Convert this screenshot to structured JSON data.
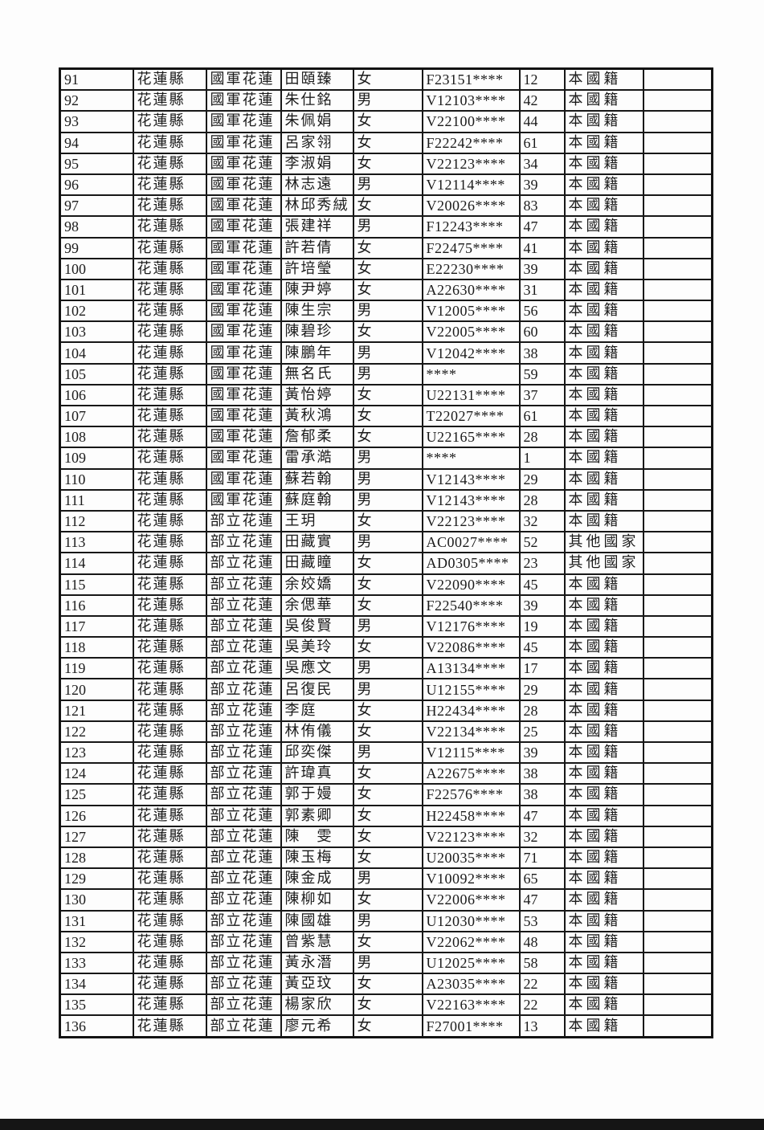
{
  "page": {
    "background": "#fdfdfd",
    "ink_color": "#1b1b1b",
    "grid_line_color": "#171717",
    "bottom_bar_color": "#151515"
  },
  "table": {
    "column_keys": [
      "row_no",
      "county",
      "hospital",
      "name",
      "gender",
      "id_masked",
      "age",
      "nationality",
      "note"
    ],
    "rows": [
      [
        "91",
        "花蓮縣",
        "國軍花蓮",
        "田頤臻",
        "女",
        "F23151****",
        "12",
        "本國籍",
        ""
      ],
      [
        "92",
        "花蓮縣",
        "國軍花蓮",
        "朱仕銘",
        "男",
        "V12103****",
        "42",
        "本國籍",
        ""
      ],
      [
        "93",
        "花蓮縣",
        "國軍花蓮",
        "朱佩娟",
        "女",
        "V22100****",
        "44",
        "本國籍",
        ""
      ],
      [
        "94",
        "花蓮縣",
        "國軍花蓮",
        "呂家翎",
        "女",
        "F22242****",
        "61",
        "本國籍",
        ""
      ],
      [
        "95",
        "花蓮縣",
        "國軍花蓮",
        "李淑娟",
        "女",
        "V22123****",
        "34",
        "本國籍",
        ""
      ],
      [
        "96",
        "花蓮縣",
        "國軍花蓮",
        "林志遠",
        "男",
        "V12114****",
        "39",
        "本國籍",
        ""
      ],
      [
        "97",
        "花蓮縣",
        "國軍花蓮",
        "林邱秀絨",
        "女",
        "V20026****",
        "83",
        "本國籍",
        ""
      ],
      [
        "98",
        "花蓮縣",
        "國軍花蓮",
        "張建祥",
        "男",
        "F12243****",
        "47",
        "本國籍",
        ""
      ],
      [
        "99",
        "花蓮縣",
        "國軍花蓮",
        "許若倩",
        "女",
        "F22475****",
        "41",
        "本國籍",
        ""
      ],
      [
        "100",
        "花蓮縣",
        "國軍花蓮",
        "許培瑩",
        "女",
        "E22230****",
        "39",
        "本國籍",
        ""
      ],
      [
        "101",
        "花蓮縣",
        "國軍花蓮",
        "陳尹婷",
        "女",
        "A22630****",
        "31",
        "本國籍",
        ""
      ],
      [
        "102",
        "花蓮縣",
        "國軍花蓮",
        "陳生宗",
        "男",
        "V12005****",
        "56",
        "本國籍",
        ""
      ],
      [
        "103",
        "花蓮縣",
        "國軍花蓮",
        "陳碧珍",
        "女",
        "V22005****",
        "60",
        "本國籍",
        ""
      ],
      [
        "104",
        "花蓮縣",
        "國軍花蓮",
        "陳鵬年",
        "男",
        "V12042****",
        "38",
        "本國籍",
        ""
      ],
      [
        "105",
        "花蓮縣",
        "國軍花蓮",
        "無名氏",
        "男",
        "****",
        "59",
        "本國籍",
        ""
      ],
      [
        "106",
        "花蓮縣",
        "國軍花蓮",
        "黃怡婷",
        "女",
        "U22131****",
        "37",
        "本國籍",
        ""
      ],
      [
        "107",
        "花蓮縣",
        "國軍花蓮",
        "黃秋鴻",
        "女",
        "T22027****",
        "61",
        "本國籍",
        ""
      ],
      [
        "108",
        "花蓮縣",
        "國軍花蓮",
        "詹郁柔",
        "女",
        "U22165****",
        "28",
        "本國籍",
        ""
      ],
      [
        "109",
        "花蓮縣",
        "國軍花蓮",
        "雷承澔",
        "男",
        "****",
        "1",
        "本國籍",
        ""
      ],
      [
        "110",
        "花蓮縣",
        "國軍花蓮",
        "蘇若翰",
        "男",
        "V12143****",
        "29",
        "本國籍",
        ""
      ],
      [
        "111",
        "花蓮縣",
        "國軍花蓮",
        "蘇庭翰",
        "男",
        "V12143****",
        "28",
        "本國籍",
        ""
      ],
      [
        "112",
        "花蓮縣",
        "部立花蓮",
        "王玥",
        "女",
        "V22123****",
        "32",
        "本國籍",
        ""
      ],
      [
        "113",
        "花蓮縣",
        "部立花蓮",
        "田藏實",
        "男",
        "AC0027****",
        "52",
        "其他國家",
        ""
      ],
      [
        "114",
        "花蓮縣",
        "部立花蓮",
        "田藏瞳",
        "女",
        "AD0305****",
        "23",
        "其他國家",
        ""
      ],
      [
        "115",
        "花蓮縣",
        "部立花蓮",
        "余姣嬌",
        "女",
        "V22090****",
        "45",
        "本國籍",
        ""
      ],
      [
        "116",
        "花蓮縣",
        "部立花蓮",
        "余偲華",
        "女",
        "F22540****",
        "39",
        "本國籍",
        ""
      ],
      [
        "117",
        "花蓮縣",
        "部立花蓮",
        "吳俊賢",
        "男",
        "V12176****",
        "19",
        "本國籍",
        ""
      ],
      [
        "118",
        "花蓮縣",
        "部立花蓮",
        "吳美玲",
        "女",
        "V22086****",
        "45",
        "本國籍",
        ""
      ],
      [
        "119",
        "花蓮縣",
        "部立花蓮",
        "吳應文",
        "男",
        "A13134****",
        "17",
        "本國籍",
        ""
      ],
      [
        "120",
        "花蓮縣",
        "部立花蓮",
        "呂復民",
        "男",
        "U12155****",
        "29",
        "本國籍",
        ""
      ],
      [
        "121",
        "花蓮縣",
        "部立花蓮",
        "李庭",
        "女",
        "H22434****",
        "28",
        "本國籍",
        ""
      ],
      [
        "122",
        "花蓮縣",
        "部立花蓮",
        "林侑儀",
        "女",
        "V22134****",
        "25",
        "本國籍",
        ""
      ],
      [
        "123",
        "花蓮縣",
        "部立花蓮",
        "邱奕傑",
        "男",
        "V12115****",
        "39",
        "本國籍",
        ""
      ],
      [
        "124",
        "花蓮縣",
        "部立花蓮",
        "許瑋真",
        "女",
        "A22675****",
        "38",
        "本國籍",
        ""
      ],
      [
        "125",
        "花蓮縣",
        "部立花蓮",
        "郭于嫚",
        "女",
        "F22576****",
        "38",
        "本國籍",
        ""
      ],
      [
        "126",
        "花蓮縣",
        "部立花蓮",
        "郭素卿",
        "女",
        "H22458****",
        "47",
        "本國籍",
        ""
      ],
      [
        "127",
        "花蓮縣",
        "部立花蓮",
        "陳　雯",
        "女",
        "V22123****",
        "32",
        "本國籍",
        ""
      ],
      [
        "128",
        "花蓮縣",
        "部立花蓮",
        "陳玉梅",
        "女",
        "U20035****",
        "71",
        "本國籍",
        ""
      ],
      [
        "129",
        "花蓮縣",
        "部立花蓮",
        "陳金成",
        "男",
        "V10092****",
        "65",
        "本國籍",
        ""
      ],
      [
        "130",
        "花蓮縣",
        "部立花蓮",
        "陳柳如",
        "女",
        "V22006****",
        "47",
        "本國籍",
        ""
      ],
      [
        "131",
        "花蓮縣",
        "部立花蓮",
        "陳國雄",
        "男",
        "U12030****",
        "53",
        "本國籍",
        ""
      ],
      [
        "132",
        "花蓮縣",
        "部立花蓮",
        "曾紫慧",
        "女",
        "V22062****",
        "48",
        "本國籍",
        ""
      ],
      [
        "133",
        "花蓮縣",
        "部立花蓮",
        "黃永潛",
        "男",
        "U12025****",
        "58",
        "本國籍",
        ""
      ],
      [
        "134",
        "花蓮縣",
        "部立花蓮",
        "黃亞玟",
        "女",
        "A23035****",
        "22",
        "本國籍",
        ""
      ],
      [
        "135",
        "花蓮縣",
        "部立花蓮",
        "楊家欣",
        "女",
        "V22163****",
        "22",
        "本國籍",
        ""
      ],
      [
        "136",
        "花蓮縣",
        "部立花蓮",
        "廖元希",
        "女",
        "F27001****",
        "13",
        "本國籍",
        ""
      ]
    ]
  }
}
